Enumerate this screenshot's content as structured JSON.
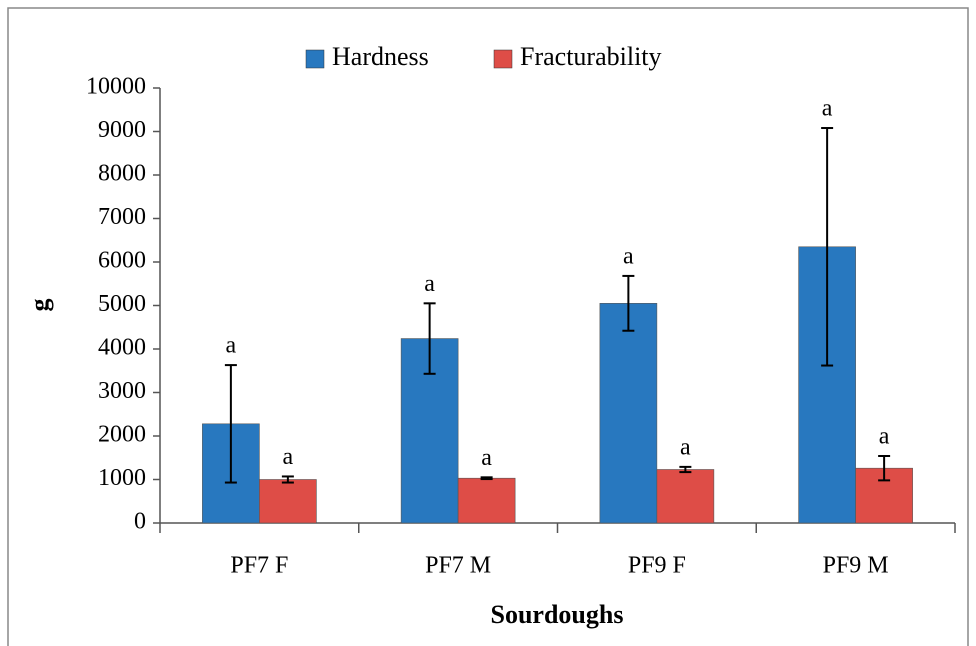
{
  "chart_data": {
    "type": "bar",
    "x_label": "Sourdoughs",
    "y_label": "g",
    "categories": [
      "PF7 F",
      "PF7 M",
      "PF9 F",
      "PF9 M"
    ],
    "series": [
      {
        "name": "Hardness",
        "color": "#2878bf",
        "values": [
          2280,
          4240,
          5050,
          6350
        ],
        "errors": [
          1350,
          810,
          630,
          2730
        ],
        "letters": [
          "a",
          "a",
          "a",
          "a"
        ]
      },
      {
        "name": "Fracturability",
        "color": "#de4d47",
        "values": [
          1000,
          1030,
          1230,
          1260
        ],
        "errors": [
          70,
          20,
          60,
          280
        ],
        "letters": [
          "a",
          "a",
          "a",
          "a"
        ]
      }
    ],
    "ylim": [
      0,
      10000
    ],
    "yticks": [
      0,
      1000,
      2000,
      3000,
      4000,
      5000,
      6000,
      7000,
      8000,
      9000,
      10000
    ],
    "legend": "top"
  }
}
